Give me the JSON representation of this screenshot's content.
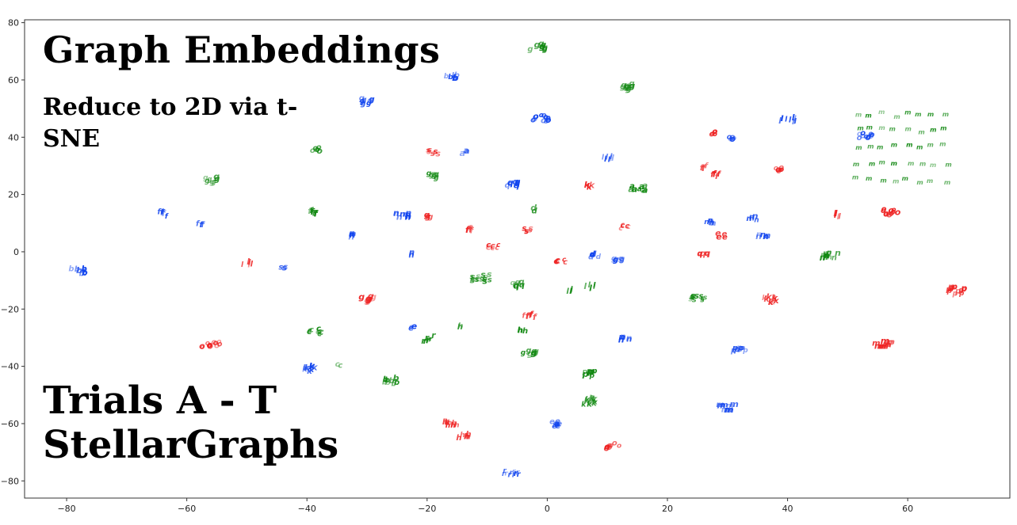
{
  "overlay": {
    "title": "Graph Embeddings",
    "subtitle": "Reduce to 2D via t-SNE",
    "trials_line1": "Trials A - T",
    "trials_line2": "StellarGraphs"
  },
  "chart_data": {
    "type": "scatter",
    "title": "Graph Embeddings",
    "subtitle": "Reduce to 2D via t-SNE",
    "xlim": [
      -87,
      77
    ],
    "ylim": [
      -86,
      81
    ],
    "xticks": [
      -80,
      -60,
      -40,
      -20,
      0,
      20,
      40,
      60
    ],
    "yticks": [
      -80,
      -60,
      -40,
      -20,
      0,
      20,
      40,
      60,
      80
    ],
    "grid": false,
    "marker": "letter",
    "colors": {
      "red": "#ee2222",
      "green": "#118811",
      "blue": "#1144ee"
    },
    "clusters": [
      {
        "label": "g",
        "color": "green",
        "x": -1.5,
        "y": 72,
        "n": 10
      },
      {
        "label": "g",
        "color": "green",
        "x": 13,
        "y": 58,
        "n": 10
      },
      {
        "label": "b",
        "color": "blue",
        "x": -16,
        "y": 61.5,
        "n": 6
      },
      {
        "label": "g",
        "color": "blue",
        "x": -30,
        "y": 53,
        "n": 7
      },
      {
        "label": "o",
        "color": "blue",
        "x": -1,
        "y": 47,
        "n": 12
      },
      {
        "label": "o",
        "color": "green",
        "x": -38.5,
        "y": 36,
        "n": 6
      },
      {
        "label": "g",
        "color": "green",
        "x": -56,
        "y": 25.5,
        "n": 7
      },
      {
        "label": "f",
        "color": "blue",
        "x": -64,
        "y": 13.5,
        "n": 6
      },
      {
        "label": "f",
        "color": "blue",
        "x": -58,
        "y": 10,
        "n": 3
      },
      {
        "label": "f",
        "color": "green",
        "x": -39,
        "y": 14,
        "n": 6
      },
      {
        "label": "b",
        "color": "blue",
        "x": -78,
        "y": -6.5,
        "n": 9
      },
      {
        "label": "l",
        "color": "red",
        "x": -50,
        "y": -4,
        "n": 5
      },
      {
        "label": "s",
        "color": "blue",
        "x": -44,
        "y": -5.5,
        "n": 3
      },
      {
        "label": "n",
        "color": "blue",
        "x": -33,
        "y": 6,
        "n": 5
      },
      {
        "label": "s",
        "color": "red",
        "x": -19,
        "y": 35,
        "n": 6
      },
      {
        "label": "g",
        "color": "green",
        "x": -19,
        "y": 27,
        "n": 6
      },
      {
        "label": "a",
        "color": "blue",
        "x": -14,
        "y": 35,
        "n": 3
      },
      {
        "label": "n",
        "color": "blue",
        "x": -24,
        "y": 13,
        "n": 9
      },
      {
        "label": "g",
        "color": "red",
        "x": -20,
        "y": 13,
        "n": 4
      },
      {
        "label": "f",
        "color": "red",
        "x": -13,
        "y": 8,
        "n": 6
      },
      {
        "label": "n",
        "color": "blue",
        "x": -22,
        "y": -0.5,
        "n": 4
      },
      {
        "label": "g",
        "color": "red",
        "x": -30,
        "y": -16,
        "n": 8
      },
      {
        "label": "c",
        "color": "green",
        "x": -38.5,
        "y": -27.5,
        "n": 9
      },
      {
        "label": "o",
        "color": "red",
        "x": -56,
        "y": -32,
        "n": 12
      },
      {
        "label": "k",
        "color": "blue",
        "x": -39.5,
        "y": -40.5,
        "n": 8
      },
      {
        "label": "c",
        "color": "green",
        "x": -34.5,
        "y": -39,
        "n": 2
      },
      {
        "label": "b",
        "color": "green",
        "x": -26,
        "y": -45,
        "n": 9
      },
      {
        "label": "r",
        "color": "green",
        "x": -20,
        "y": -30,
        "n": 9
      },
      {
        "label": "e",
        "color": "blue",
        "x": -22,
        "y": -26,
        "n": 4
      },
      {
        "label": "h",
        "color": "green",
        "x": -14,
        "y": -26,
        "n": 2
      },
      {
        "label": "h",
        "color": "red",
        "x": -16,
        "y": -60,
        "n": 9
      },
      {
        "label": "h",
        "color": "red",
        "x": -14,
        "y": -64,
        "n": 6
      },
      {
        "label": "r",
        "color": "blue",
        "x": -6,
        "y": -77,
        "n": 10
      },
      {
        "label": "s",
        "color": "green",
        "x": -11,
        "y": -9,
        "n": 14
      },
      {
        "label": "q",
        "color": "green",
        "x": -5,
        "y": -11,
        "n": 6
      },
      {
        "label": "c",
        "color": "red",
        "x": -9,
        "y": 2,
        "n": 6
      },
      {
        "label": "q",
        "color": "blue",
        "x": -5.5,
        "y": 24,
        "n": 8
      },
      {
        "label": "s",
        "color": "red",
        "x": -3,
        "y": 8,
        "n": 5
      },
      {
        "label": "d",
        "color": "green",
        "x": -2,
        "y": 15,
        "n": 2
      },
      {
        "label": "f",
        "color": "red",
        "x": -3,
        "y": -22,
        "n": 6
      },
      {
        "label": "h",
        "color": "green",
        "x": -4,
        "y": -27,
        "n": 3
      },
      {
        "label": "g",
        "color": "green",
        "x": -3,
        "y": -35,
        "n": 8
      },
      {
        "label": "c",
        "color": "red",
        "x": 2,
        "y": -3,
        "n": 7
      },
      {
        "label": "l",
        "color": "green",
        "x": 4,
        "y": -13,
        "n": 5
      },
      {
        "label": "l",
        "color": "green",
        "x": 7,
        "y": -12,
        "n": 5
      },
      {
        "label": "e",
        "color": "blue",
        "x": 1,
        "y": -59.5,
        "n": 9
      },
      {
        "label": "k",
        "color": "green",
        "x": 7,
        "y": -52,
        "n": 10
      },
      {
        "label": "p",
        "color": "green",
        "x": 7,
        "y": -42,
        "n": 8
      },
      {
        "label": "o",
        "color": "red",
        "x": 11,
        "y": -67.5,
        "n": 8
      },
      {
        "label": "l",
        "color": "blue",
        "x": 10,
        "y": 33,
        "n": 7
      },
      {
        "label": "a",
        "color": "green",
        "x": 15,
        "y": 22.5,
        "n": 10
      },
      {
        "label": "k",
        "color": "red",
        "x": 7,
        "y": 23,
        "n": 3
      },
      {
        "label": "c",
        "color": "red",
        "x": 13,
        "y": 9,
        "n": 5
      },
      {
        "label": "g",
        "color": "blue",
        "x": 12,
        "y": -2,
        "n": 6
      },
      {
        "label": "d",
        "color": "blue",
        "x": 8,
        "y": -1,
        "n": 5
      },
      {
        "label": "n",
        "color": "blue",
        "x": 13,
        "y": -30,
        "n": 6
      },
      {
        "label": "s",
        "color": "green",
        "x": 25,
        "y": -16,
        "n": 10
      },
      {
        "label": "o",
        "color": "red",
        "x": 27,
        "y": 42,
        "n": 6
      },
      {
        "label": "o",
        "color": "blue",
        "x": 31,
        "y": 40,
        "n": 5
      },
      {
        "label": "f",
        "color": "red",
        "x": 26,
        "y": 30,
        "n": 4
      },
      {
        "label": "f",
        "color": "red",
        "x": 28,
        "y": 27,
        "n": 5
      },
      {
        "label": "n",
        "color": "blue",
        "x": 27,
        "y": 11,
        "n": 6
      },
      {
        "label": "q",
        "color": "red",
        "x": 26,
        "y": 0,
        "n": 5
      },
      {
        "label": "e",
        "color": "red",
        "x": 29,
        "y": 6,
        "n": 4
      },
      {
        "label": "n",
        "color": "blue",
        "x": 36,
        "y": 5.5,
        "n": 6
      },
      {
        "label": "n",
        "color": "blue",
        "x": 34,
        "y": 12,
        "n": 5
      },
      {
        "label": "l",
        "color": "blue",
        "x": 40,
        "y": 46.5,
        "n": 10
      },
      {
        "label": "o",
        "color": "blue",
        "x": 53,
        "y": 41,
        "n": 10
      },
      {
        "label": "o",
        "color": "red",
        "x": 39,
        "y": 29,
        "n": 6
      },
      {
        "label": "l",
        "color": "red",
        "x": 48,
        "y": 13,
        "n": 6
      },
      {
        "label": "o",
        "color": "red",
        "x": 57,
        "y": 14,
        "n": 12
      },
      {
        "label": "n",
        "color": "green",
        "x": 47,
        "y": -1,
        "n": 14
      },
      {
        "label": "k",
        "color": "red",
        "x": 37,
        "y": -16.5,
        "n": 8
      },
      {
        "label": "p",
        "color": "blue",
        "x": 32,
        "y": -34,
        "n": 7
      },
      {
        "label": "m",
        "color": "blue",
        "x": 30,
        "y": -54,
        "n": 10
      },
      {
        "label": "m",
        "color": "red",
        "x": 56,
        "y": -32,
        "n": 10
      },
      {
        "label": "p",
        "color": "red",
        "x": 68,
        "y": -13,
        "n": 12
      },
      {
        "label": "m",
        "color": "green",
        "x": 59,
        "y": 37,
        "n": 40
      }
    ]
  }
}
